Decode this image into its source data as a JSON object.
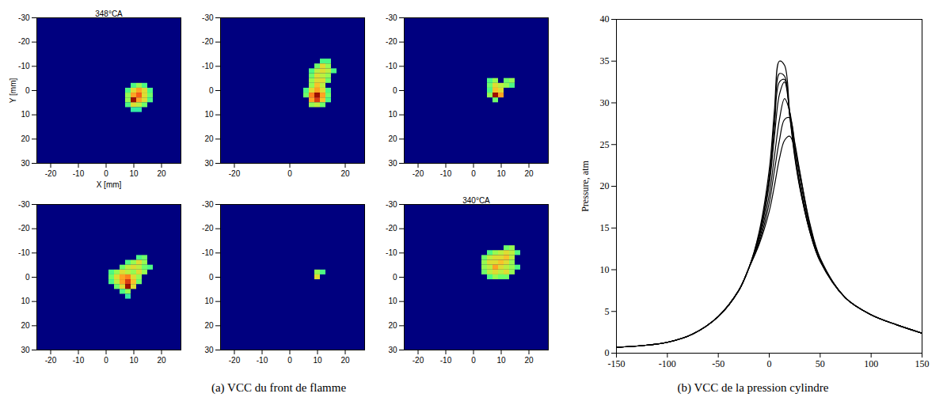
{
  "chart_data": [
    {
      "type": "heatmap",
      "title": "348°CA",
      "xlabel": "X [mm]",
      "ylabel": "Y [mm]",
      "caption": "(a) VCC du front de flamme",
      "xlim": [
        -25,
        27
      ],
      "ylim": [
        30,
        -30
      ],
      "xticks": [
        -20,
        -10,
        0,
        10,
        20
      ],
      "yticks": [
        -30,
        -20,
        -10,
        0,
        10,
        20,
        30
      ],
      "cell_size": 2,
      "crange": [
        0,
        1
      ],
      "cells": [
        [
          10,
          -2,
          0.4
        ],
        [
          12,
          -2,
          0.5
        ],
        [
          14,
          -2,
          0.4
        ],
        [
          8,
          0,
          0.4
        ],
        [
          10,
          0,
          0.6
        ],
        [
          12,
          0,
          0.7
        ],
        [
          14,
          0,
          0.6
        ],
        [
          16,
          0,
          0.4
        ],
        [
          8,
          2,
          0.5
        ],
        [
          10,
          2,
          0.7
        ],
        [
          12,
          2,
          0.8
        ],
        [
          14,
          2,
          0.6
        ],
        [
          16,
          2,
          0.45
        ],
        [
          8,
          4,
          0.5
        ],
        [
          10,
          4,
          0.95
        ],
        [
          12,
          4,
          0.7
        ],
        [
          14,
          4,
          0.6
        ],
        [
          16,
          4,
          0.4
        ],
        [
          8,
          6,
          0.4
        ],
        [
          10,
          6,
          0.6
        ],
        [
          12,
          6,
          0.55
        ],
        [
          14,
          6,
          0.45
        ],
        [
          10,
          8,
          0.35
        ],
        [
          12,
          8,
          0.35
        ]
      ]
    },
    {
      "type": "heatmap",
      "xlim": [
        -25,
        27
      ],
      "ylim": [
        30,
        -30
      ],
      "xticks": [
        -20,
        0,
        20
      ],
      "yticks": [
        -30,
        -20,
        -10,
        0,
        10,
        20,
        30
      ],
      "cell_size": 2,
      "crange": [
        0,
        1
      ],
      "cells": [
        [
          12,
          -12,
          0.4
        ],
        [
          14,
          -12,
          0.4
        ],
        [
          10,
          -10,
          0.45
        ],
        [
          12,
          -10,
          0.6
        ],
        [
          14,
          -10,
          0.5
        ],
        [
          8,
          -8,
          0.4
        ],
        [
          10,
          -8,
          0.55
        ],
        [
          12,
          -8,
          0.6
        ],
        [
          14,
          -8,
          0.55
        ],
        [
          16,
          -8,
          0.4
        ],
        [
          8,
          -6,
          0.45
        ],
        [
          10,
          -6,
          0.6
        ],
        [
          12,
          -6,
          0.55
        ],
        [
          14,
          -6,
          0.5
        ],
        [
          8,
          -4,
          0.5
        ],
        [
          10,
          -4,
          0.6
        ],
        [
          12,
          -4,
          0.6
        ],
        [
          14,
          -4,
          0.45
        ],
        [
          8,
          -2,
          0.5
        ],
        [
          10,
          -2,
          0.65
        ],
        [
          12,
          -2,
          0.55
        ],
        [
          6,
          0,
          0.4
        ],
        [
          8,
          0,
          0.6
        ],
        [
          10,
          0,
          0.7
        ],
        [
          12,
          0,
          0.6
        ],
        [
          14,
          0,
          0.4
        ],
        [
          6,
          2,
          0.45
        ],
        [
          8,
          2,
          0.75
        ],
        [
          10,
          2,
          0.95
        ],
        [
          12,
          2,
          0.7
        ],
        [
          14,
          2,
          0.45
        ],
        [
          8,
          4,
          0.7
        ],
        [
          10,
          4,
          0.85
        ],
        [
          12,
          4,
          0.65
        ],
        [
          14,
          4,
          0.4
        ],
        [
          8,
          6,
          0.5
        ],
        [
          10,
          6,
          0.55
        ],
        [
          12,
          6,
          0.45
        ]
      ]
    },
    {
      "type": "heatmap",
      "xlim": [
        -25,
        27
      ],
      "ylim": [
        30,
        -30
      ],
      "xticks": [
        -20,
        -10,
        0,
        10,
        20
      ],
      "yticks": [
        -30,
        -20,
        -10,
        0,
        10,
        20,
        30
      ],
      "cell_size": 2,
      "crange": [
        0,
        1
      ],
      "cells": [
        [
          6,
          -4,
          0.4
        ],
        [
          8,
          -4,
          0.5
        ],
        [
          12,
          -4,
          0.45
        ],
        [
          14,
          -4,
          0.5
        ],
        [
          6,
          -2,
          0.45
        ],
        [
          8,
          -2,
          0.6
        ],
        [
          10,
          -2,
          0.55
        ],
        [
          12,
          -2,
          0.5
        ],
        [
          14,
          -2,
          0.4
        ],
        [
          6,
          0,
          0.4
        ],
        [
          8,
          0,
          0.65
        ],
        [
          10,
          0,
          0.6
        ],
        [
          6,
          2,
          0.5
        ],
        [
          8,
          2,
          0.95
        ],
        [
          10,
          2,
          0.7
        ],
        [
          8,
          4,
          0.45
        ]
      ]
    },
    {
      "type": "heatmap",
      "xlim": [
        -25,
        27
      ],
      "ylim": [
        30,
        -30
      ],
      "xticks": [
        -20,
        -10,
        0,
        10,
        20
      ],
      "yticks": [
        -30,
        -20,
        -10,
        0,
        10,
        20,
        30
      ],
      "cell_size": 2,
      "crange": [
        0,
        1
      ],
      "cells": [
        [
          12,
          -8,
          0.4
        ],
        [
          14,
          -8,
          0.45
        ],
        [
          8,
          -6,
          0.4
        ],
        [
          10,
          -6,
          0.5
        ],
        [
          12,
          -6,
          0.6
        ],
        [
          14,
          -6,
          0.5
        ],
        [
          6,
          -4,
          0.45
        ],
        [
          8,
          -4,
          0.55
        ],
        [
          10,
          -4,
          0.6
        ],
        [
          12,
          -4,
          0.55
        ],
        [
          14,
          -4,
          0.45
        ],
        [
          16,
          -4,
          0.4
        ],
        [
          2,
          -2,
          0.4
        ],
        [
          4,
          -2,
          0.5
        ],
        [
          6,
          -2,
          0.6
        ],
        [
          8,
          -2,
          0.55
        ],
        [
          10,
          -2,
          0.5
        ],
        [
          12,
          -2,
          0.6
        ],
        [
          14,
          -2,
          0.5
        ],
        [
          2,
          0,
          0.45
        ],
        [
          4,
          0,
          0.6
        ],
        [
          6,
          0,
          0.7
        ],
        [
          8,
          0,
          0.75
        ],
        [
          10,
          0,
          0.6
        ],
        [
          12,
          0,
          0.5
        ],
        [
          2,
          2,
          0.4
        ],
        [
          4,
          2,
          0.55
        ],
        [
          6,
          2,
          0.7
        ],
        [
          8,
          2,
          0.85
        ],
        [
          10,
          2,
          0.65
        ],
        [
          12,
          2,
          0.45
        ],
        [
          4,
          4,
          0.45
        ],
        [
          6,
          4,
          0.6
        ],
        [
          8,
          4,
          0.95
        ],
        [
          10,
          4,
          0.6
        ],
        [
          6,
          6,
          0.4
        ],
        [
          8,
          6,
          0.5
        ],
        [
          8,
          8,
          0.35
        ]
      ]
    },
    {
      "type": "heatmap",
      "xlim": [
        -25,
        27
      ],
      "ylim": [
        30,
        -30
      ],
      "xticks": [
        -20,
        -10,
        0,
        10,
        20
      ],
      "yticks": [
        -30,
        -20,
        -10,
        0,
        10,
        20,
        30
      ],
      "cell_size": 2,
      "crange": [
        0,
        1
      ],
      "cells": [
        [
          10,
          -2,
          0.5
        ],
        [
          10,
          0,
          0.6
        ],
        [
          12,
          -2,
          0.4
        ]
      ]
    },
    {
      "type": "heatmap",
      "title": "340°CA",
      "xlim": [
        -25,
        27
      ],
      "ylim": [
        30,
        -30
      ],
      "xticks": [
        -20,
        -10,
        0,
        10,
        20
      ],
      "yticks": [
        -30,
        -20,
        -10,
        0,
        10,
        20,
        30
      ],
      "cell_size": 2,
      "crange": [
        0,
        1
      ],
      "cells": [
        [
          12,
          -12,
          0.45
        ],
        [
          14,
          -12,
          0.5
        ],
        [
          6,
          -10,
          0.4
        ],
        [
          8,
          -10,
          0.5
        ],
        [
          10,
          -10,
          0.55
        ],
        [
          12,
          -10,
          0.6
        ],
        [
          14,
          -10,
          0.55
        ],
        [
          16,
          -10,
          0.4
        ],
        [
          4,
          -8,
          0.45
        ],
        [
          6,
          -8,
          0.55
        ],
        [
          8,
          -8,
          0.6
        ],
        [
          10,
          -8,
          0.6
        ],
        [
          12,
          -8,
          0.65
        ],
        [
          14,
          -8,
          0.55
        ],
        [
          4,
          -6,
          0.5
        ],
        [
          6,
          -6,
          0.6
        ],
        [
          8,
          -6,
          0.6
        ],
        [
          10,
          -6,
          0.65
        ],
        [
          12,
          -6,
          0.6
        ],
        [
          14,
          -6,
          0.5
        ],
        [
          4,
          -4,
          0.5
        ],
        [
          6,
          -4,
          0.55
        ],
        [
          8,
          -4,
          0.7
        ],
        [
          10,
          -4,
          0.6
        ],
        [
          12,
          -4,
          0.55
        ],
        [
          14,
          -4,
          0.5
        ],
        [
          16,
          -4,
          0.4
        ],
        [
          4,
          -2,
          0.45
        ],
        [
          6,
          -2,
          0.55
        ],
        [
          8,
          -2,
          0.6
        ],
        [
          10,
          -2,
          0.55
        ],
        [
          12,
          -2,
          0.6
        ],
        [
          14,
          -2,
          0.5
        ],
        [
          6,
          0,
          0.4
        ],
        [
          8,
          0,
          0.5
        ],
        [
          10,
          0,
          0.45
        ],
        [
          12,
          0,
          0.45
        ]
      ]
    },
    {
      "type": "line",
      "ylabel": "Pressure, atm",
      "caption": "(b) VCC de la pression cylindre",
      "xlim": [
        -150,
        150
      ],
      "ylim": [
        0,
        40
      ],
      "xticks": [
        -150,
        -100,
        -50,
        0,
        50,
        100,
        150
      ],
      "yticks": [
        0,
        5,
        10,
        15,
        20,
        25,
        30,
        35,
        40
      ],
      "x": [
        -150,
        -125,
        -100,
        -75,
        -50,
        -30,
        -20,
        -10,
        0,
        5,
        10,
        15,
        20,
        25,
        30,
        40,
        50,
        75,
        100,
        125,
        150
      ],
      "series": [
        {
          "color": "#000000",
          "values": [
            0.7,
            0.9,
            1.3,
            2.3,
            4.4,
            7.5,
            10.2,
            14.5,
            22,
            29,
            35,
            34.5,
            29,
            24,
            20,
            14.5,
            11,
            6.6,
            4.6,
            3.4,
            2.4
          ]
        },
        {
          "color": "#000000",
          "values": [
            0.7,
            0.9,
            1.3,
            2.3,
            4.4,
            7.5,
            10.2,
            14.2,
            21.2,
            27.8,
            33.5,
            33.2,
            28.5,
            23.5,
            19.8,
            14.5,
            11,
            6.6,
            4.6,
            3.4,
            2.4
          ]
        },
        {
          "color": "#000000",
          "values": [
            0.7,
            0.9,
            1.3,
            2.3,
            4.4,
            7.5,
            10.2,
            14,
            20.8,
            27,
            32.5,
            32.8,
            28.6,
            23.8,
            20,
            14.6,
            11.1,
            6.6,
            4.6,
            3.4,
            2.4
          ]
        },
        {
          "color": "#000000",
          "values": [
            0.7,
            0.9,
            1.3,
            2.3,
            4.4,
            7.5,
            10.2,
            13.8,
            20.2,
            25.8,
            31,
            32.5,
            29,
            24.2,
            20.3,
            14.7,
            11.1,
            6.6,
            4.6,
            3.4,
            2.4
          ]
        },
        {
          "color": "#000000",
          "values": [
            0.7,
            0.9,
            1.3,
            2.3,
            4.4,
            7.5,
            10.2,
            13.5,
            19,
            23.5,
            28,
            30.5,
            29,
            25,
            21,
            15,
            11.2,
            6.6,
            4.6,
            3.4,
            2.4
          ]
        },
        {
          "color": "#000000",
          "values": [
            0.7,
            0.9,
            1.3,
            2.3,
            4.4,
            7.5,
            10.2,
            13.2,
            18,
            21.8,
            25.5,
            28,
            28.2,
            25.3,
            21.8,
            15.3,
            11.3,
            6.6,
            4.6,
            3.4,
            2.4
          ]
        },
        {
          "color": "#000000",
          "values": [
            0.7,
            0.9,
            1.3,
            2.3,
            4.4,
            7.5,
            10.2,
            13,
            17,
            20,
            23.3,
            25.5,
            26,
            24.6,
            21.6,
            15.5,
            11.4,
            6.6,
            4.6,
            3.4,
            2.4
          ]
        }
      ]
    }
  ]
}
